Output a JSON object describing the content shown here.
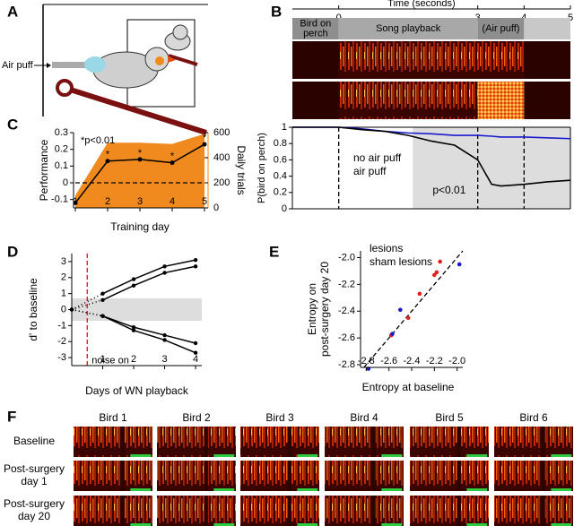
{
  "panels": {
    "A": {
      "label": "A",
      "air_puff": "Air puff"
    },
    "F": {
      "label": "F",
      "birds": [
        "Bird 1",
        "Bird 2",
        "Bird 3",
        "Bird 4",
        "Bird 5",
        "Bird 6"
      ],
      "rows": [
        [
          "Baseline"
        ],
        [
          "Post-surgery",
          "day 1"
        ],
        [
          "Post-surgery",
          "day 20"
        ]
      ]
    }
  },
  "chart_data": [
    {
      "type": "line",
      "panel": "B",
      "xlabel": "Time (seconds)",
      "ylabel": "P(bird on perch)",
      "segments": [
        {
          "label": [
            "Bird on",
            "perch"
          ],
          "start": -1,
          "end": 0
        },
        {
          "label": [
            "Song playback"
          ],
          "start": 0,
          "end": 3
        },
        {
          "label": [
            "(Air puff)"
          ],
          "start": 3,
          "end": 4
        }
      ],
      "x": [
        -1,
        0,
        0.5,
        1,
        1.5,
        2,
        2.5,
        3,
        3.3,
        3.5,
        4,
        4.5,
        5
      ],
      "series": [
        {
          "name": "no air puff",
          "color": "#1a1acc",
          "values": [
            1,
            1,
            0.98,
            0.95,
            0.93,
            0.92,
            0.9,
            0.9,
            0.89,
            0.88,
            0.88,
            0.87,
            0.86
          ]
        },
        {
          "name": "air puff",
          "color": "#000000",
          "values": [
            1,
            1,
            0.97,
            0.95,
            0.9,
            0.83,
            0.78,
            0.6,
            0.3,
            0.28,
            0.3,
            0.33,
            0.35
          ]
        }
      ],
      "xlim": [
        -1,
        5
      ],
      "xticks": [
        0,
        3,
        4,
        5
      ],
      "ylim": [
        0,
        1
      ],
      "yticks": [
        0,
        0.2,
        0.4,
        0.6,
        0.8,
        1
      ],
      "vlines": [
        0,
        3,
        4
      ],
      "shade": [
        1.6,
        5
      ],
      "shade_label": "p<0.01"
    },
    {
      "type": "line",
      "panel": "C",
      "xlabel": "Training day",
      "ylabel": "Performance",
      "y2label": "Daily trials",
      "annotation": "*p<0.01",
      "x": [
        1,
        2,
        3,
        4,
        5
      ],
      "series": [
        {
          "type": "area",
          "axis": "y2",
          "color": "#f08a1e",
          "values": [
            100,
            520,
            520,
            510,
            590
          ]
        },
        {
          "color": "#000000",
          "values": [
            -0.12,
            0.13,
            0.14,
            0.12,
            0.23
          ],
          "value_labels": [
            null,
            "*",
            "*",
            "*",
            "*"
          ]
        }
      ],
      "xlim": [
        1,
        5
      ],
      "xticks": [
        1,
        2,
        3,
        4,
        5
      ],
      "ylim": [
        -0.15,
        0.3
      ],
      "yticks": [
        -0.1,
        0,
        0.1,
        0.2,
        0.3
      ],
      "y2lim": [
        0,
        600
      ],
      "y2ticks": [
        0,
        200,
        400,
        600
      ],
      "hline": 0
    },
    {
      "type": "line",
      "panel": "D",
      "xlabel": "Days of WN playback",
      "ylabel": "d' to baseline",
      "annotation": "noise on",
      "x": [
        0,
        1,
        2,
        3,
        4
      ],
      "series": [
        {
          "color": "#000000",
          "values": [
            0,
            1,
            1.9,
            2.7,
            3.1
          ]
        },
        {
          "color": "#000000",
          "values": [
            0,
            0.6,
            1.5,
            2.3,
            2.7
          ]
        },
        {
          "color": "#000000",
          "values": [
            0,
            -0.4,
            -1.1,
            -1.6,
            -2.1
          ]
        },
        {
          "color": "#000000",
          "values": [
            0,
            -0.4,
            -1.3,
            -1.9,
            -2.7
          ]
        }
      ],
      "xlim": [
        0,
        4.2
      ],
      "xticks": [
        1,
        2,
        3,
        4
      ],
      "ylim": [
        -3.5,
        3.5
      ],
      "yticks": [
        -3,
        -2,
        -1,
        0,
        1,
        2,
        3
      ],
      "band": [
        -0.7,
        0.7
      ],
      "vline": 0.5,
      "vline_color": "#e01010"
    },
    {
      "type": "scatter",
      "panel": "E",
      "xlabel": "Entropy at baseline",
      "ylabel": [
        "Entropy on",
        "post-surgery day 20"
      ],
      "series": [
        {
          "name": "lesions",
          "color": "#e02020",
          "x": [
            -2.58,
            -2.43,
            -2.33,
            -2.2,
            -2.18,
            -2.15
          ],
          "values": [
            -2.58,
            -2.45,
            -2.27,
            -2.13,
            -2.11,
            -2.03
          ]
        },
        {
          "name": "sham lesions",
          "color": "#1a1acc",
          "x": [
            -2.78,
            -2.57,
            -2.5,
            -1.98
          ],
          "values": [
            -2.83,
            -2.57,
            -2.39,
            -2.05
          ]
        }
      ],
      "xlim": [
        -2.85,
        -1.95
      ],
      "xticks": [
        -2.8,
        -2.6,
        -2.4,
        -2.2,
        {
          "value": -2,
          "label": "-2.0"
        }
      ],
      "ylim": [
        -2.82,
        -1.95
      ],
      "yticks": [
        -2.8,
        -2.6,
        -2.4,
        -2.2,
        {
          "value": -2,
          "label": "-2.0"
        }
      ],
      "identity_line": true
    }
  ]
}
